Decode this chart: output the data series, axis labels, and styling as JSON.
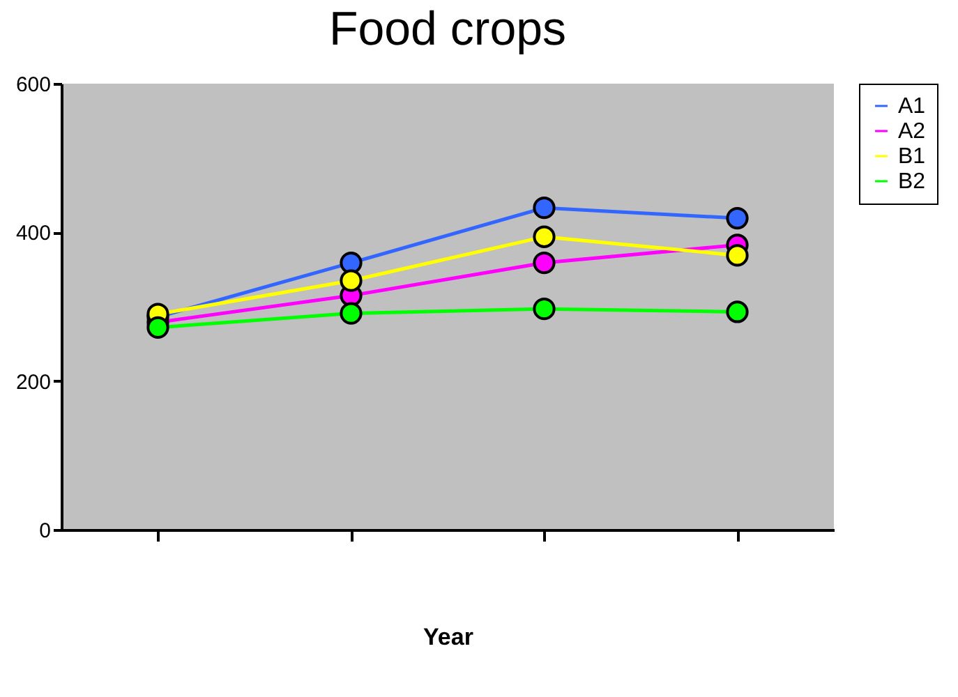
{
  "chart_data": {
    "type": "line",
    "title": "Food crops",
    "xlabel": "Year",
    "categories": [
      null,
      null,
      null,
      null
    ],
    "ylim": [
      0,
      600
    ],
    "yticks": [
      0,
      200,
      400,
      600
    ],
    "tick_labels": "y",
    "grid": false,
    "legend": "right",
    "marker": "circle",
    "line_style": "solid",
    "series": [
      {
        "name": "A1",
        "color": "#3366ff",
        "values": [
          286,
          359,
          433,
          419
        ]
      },
      {
        "name": "A2",
        "color": "#ff00ff",
        "values": [
          279,
          315,
          359,
          383
        ]
      },
      {
        "name": "B1",
        "color": "#ffff00",
        "values": [
          290,
          335,
          394,
          369
        ]
      },
      {
        "name": "B2",
        "color": "#00ff00",
        "values": [
          272,
          291,
          297,
          293
        ]
      }
    ]
  }
}
